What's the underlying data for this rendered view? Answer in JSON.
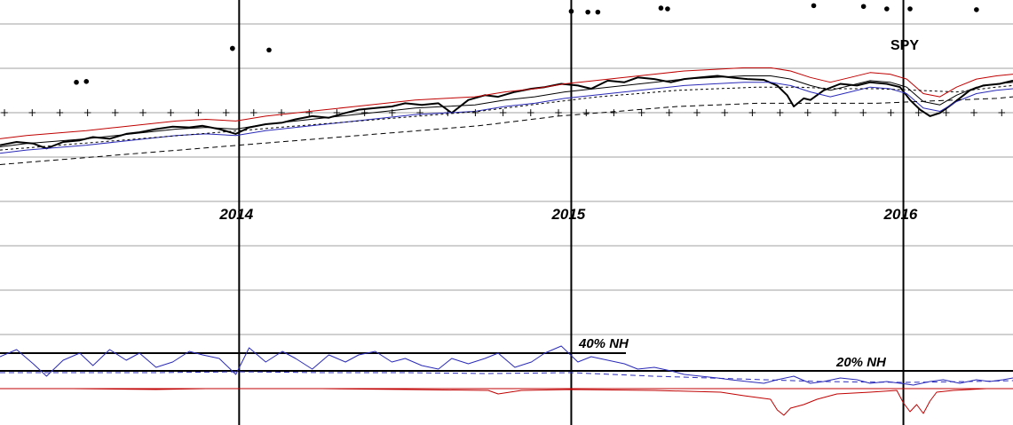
{
  "chart_data": {
    "type": "line",
    "panels": [
      {
        "name": "price",
        "ticker": "SPY",
        "x_domain": [
          2013.28,
          2016.33
        ],
        "years": [
          "2014",
          "2015",
          "2016"
        ],
        "year_positions": [
          2014.0,
          2015.0,
          2016.0
        ],
        "series": [
          {
            "role": "price",
            "color": "#000000",
            "style": "bold",
            "x": [
              2013.28,
              2013.33,
              2013.38,
              2013.42,
              2013.47,
              2013.52,
              2013.56,
              2013.61,
              2013.66,
              2013.7,
              2013.75,
              2013.8,
              2013.85,
              2013.89,
              2013.94,
              2013.99,
              2014.03,
              2014.08,
              2014.13,
              2014.17,
              2014.22,
              2014.27,
              2014.32,
              2014.36,
              2014.41,
              2014.46,
              2014.5,
              2014.55,
              2014.6,
              2014.64,
              2014.69,
              2014.74,
              2014.78,
              2014.83,
              2014.88,
              2014.92,
              2014.97,
              2015.02,
              2015.06,
              2015.11,
              2015.16,
              2015.2,
              2015.25,
              2015.3,
              2015.34,
              2015.39,
              2015.44,
              2015.48,
              2015.53,
              2015.58,
              2015.62,
              2015.65,
              2015.67,
              2015.7,
              2015.72,
              2015.76,
              2015.81,
              2015.86,
              2015.9,
              2015.95,
              2015.99,
              2016.02,
              2016.05,
              2016.08,
              2016.11,
              2016.15,
              2016.2,
              2016.24,
              2016.29,
              2016.33
            ],
            "values": [
              40,
              44,
              42,
              36,
              44,
              46,
              50,
              48,
              54,
              56,
              60,
              63,
              62,
              64,
              60,
              54,
              62,
              66,
              68,
              72,
              76,
              74,
              80,
              84,
              86,
              88,
              92,
              90,
              92,
              80,
              96,
              102,
              100,
              106,
              110,
              112,
              116,
              114,
              110,
              120,
              118,
              124,
              122,
              118,
              122,
              124,
              126,
              124,
              122,
              121,
              114,
              102,
              88,
              98,
              96,
              108,
              116,
              114,
              118,
              116,
              112,
              96,
              84,
              76,
              80,
              92,
              108,
              114,
              116,
              120
            ]
          },
          {
            "role": "upper-envelope",
            "color": "#c00000",
            "style": "thin",
            "x": [
              2013.28,
              2013.36,
              2013.45,
              2013.54,
              2013.63,
              2013.72,
              2013.81,
              2013.9,
              2013.99,
              2014.08,
              2014.17,
              2014.26,
              2014.35,
              2014.44,
              2014.53,
              2014.62,
              2014.71,
              2014.8,
              2014.89,
              2014.98,
              2015.07,
              2015.16,
              2015.25,
              2015.34,
              2015.43,
              2015.52,
              2015.6,
              2015.66,
              2015.72,
              2015.78,
              2015.84,
              2015.9,
              2015.96,
              2016.01,
              2016.06,
              2016.11,
              2016.16,
              2016.22,
              2016.28,
              2016.33
            ],
            "values": [
              48,
              52,
              55,
              58,
              62,
              66,
              70,
              72,
              70,
              76,
              80,
              84,
              88,
              92,
              96,
              98,
              100,
              106,
              110,
              116,
              120,
              124,
              128,
              132,
              134,
              136,
              136,
              132,
              124,
              118,
              124,
              130,
              128,
              122,
              104,
              100,
              112,
              122,
              126,
              128
            ]
          },
          {
            "role": "moving-average",
            "color": "#000000",
            "style": "thin",
            "x": [
              2013.28,
              2013.36,
              2013.45,
              2013.54,
              2013.63,
              2013.72,
              2013.81,
              2013.9,
              2013.99,
              2014.08,
              2014.17,
              2014.26,
              2014.35,
              2014.44,
              2014.53,
              2014.62,
              2014.71,
              2014.8,
              2014.89,
              2014.98,
              2015.07,
              2015.16,
              2015.25,
              2015.34,
              2015.43,
              2015.52,
              2015.6,
              2015.66,
              2015.72,
              2015.78,
              2015.84,
              2015.9,
              2015.96,
              2016.01,
              2016.06,
              2016.11,
              2016.16,
              2016.22,
              2016.28,
              2016.33
            ],
            "values": [
              38,
              42,
              45,
              48,
              52,
              56,
              60,
              62,
              60,
              66,
              70,
              74,
              78,
              82,
              86,
              88,
              90,
              96,
              100,
              106,
              110,
              114,
              118,
              122,
              124,
              126,
              126,
              122,
              114,
              108,
              114,
              120,
              118,
              112,
              94,
              90,
              102,
              112,
              116,
              118
            ]
          },
          {
            "role": "lower-envelope",
            "color": "#2a2ab8",
            "style": "thin",
            "x": [
              2013.28,
              2013.36,
              2013.45,
              2013.54,
              2013.63,
              2013.72,
              2013.81,
              2013.9,
              2013.99,
              2014.08,
              2014.17,
              2014.26,
              2014.35,
              2014.44,
              2014.53,
              2014.62,
              2014.71,
              2014.8,
              2014.89,
              2014.98,
              2015.07,
              2015.16,
              2015.25,
              2015.34,
              2015.43,
              2015.52,
              2015.6,
              2015.66,
              2015.72,
              2015.78,
              2015.84,
              2015.9,
              2015.96,
              2016.01,
              2016.06,
              2016.11,
              2016.16,
              2016.22,
              2016.28,
              2016.33
            ],
            "values": [
              30,
              34,
              37,
              40,
              44,
              48,
              52,
              54,
              52,
              58,
              62,
              66,
              70,
              74,
              78,
              80,
              82,
              88,
              92,
              98,
              102,
              106,
              110,
              114,
              116,
              118,
              118,
              114,
              106,
              100,
              106,
              112,
              110,
              104,
              86,
              82,
              94,
              104,
              108,
              110
            ]
          },
          {
            "role": "short-dashed",
            "color": "#000000",
            "style": "dotted",
            "x": [
              2013.28,
              2013.4,
              2013.52,
              2013.64,
              2013.76,
              2013.88,
              2014.0,
              2014.12,
              2014.24,
              2014.36,
              2014.48,
              2014.6,
              2014.72,
              2014.84,
              2014.96,
              2015.08,
              2015.2,
              2015.32,
              2015.44,
              2015.56,
              2015.68,
              2015.8,
              2015.92,
              2016.04,
              2016.16,
              2016.28,
              2016.33
            ],
            "values": [
              34,
              38,
              42,
              46,
              50,
              54,
              58,
              62,
              66,
              70,
              74,
              78,
              82,
              88,
              94,
              100,
              104,
              108,
              110,
              112,
              112,
              110,
              110,
              108,
              106,
              112,
              114
            ]
          },
          {
            "role": "long-dashed",
            "color": "#000000",
            "style": "dashed",
            "x": [
              2013.28,
              2013.4,
              2013.52,
              2013.64,
              2013.76,
              2013.88,
              2014.0,
              2014.12,
              2014.24,
              2014.36,
              2014.48,
              2014.6,
              2014.72,
              2014.84,
              2014.96,
              2015.08,
              2015.2,
              2015.32,
              2015.44,
              2015.56,
              2015.68,
              2015.8,
              2015.92,
              2016.04,
              2016.16,
              2016.28,
              2016.33
            ],
            "values": [
              16,
              20,
              24,
              28,
              32,
              36,
              40,
              44,
              48,
              52,
              56,
              60,
              64,
              70,
              76,
              80,
              84,
              88,
              90,
              92,
              92,
              92,
              92,
              94,
              96,
              98,
              100
            ]
          }
        ],
        "markers": {
          "style": "dots",
          "x": [
            2013.51,
            2013.54,
            2013.98,
            2013.98,
            2014.09,
            2015.0,
            2015.05,
            2015.08,
            2015.27,
            2015.29,
            2015.73,
            2015.88,
            2015.95,
            2016.02,
            2016.22,
            2016.35
          ],
          "values": [
            118,
            119,
            160,
            160,
            158,
            206,
            205,
            205,
            210,
            209,
            213,
            212,
            209,
            209,
            208,
            210
          ]
        }
      },
      {
        "name": "new-highs-breadth",
        "x_domain": [
          2013.28,
          2016.33
        ],
        "annotations": [
          "40% NH",
          "20% NH"
        ],
        "reference_levels": [
          40,
          20
        ],
        "series": [
          {
            "role": "new-highs-pct",
            "color": "#2a2ab8",
            "x": [
              2013.28,
              2013.33,
              2013.38,
              2013.42,
              2013.47,
              2013.52,
              2013.56,
              2013.61,
              2013.66,
              2013.7,
              2013.75,
              2013.8,
              2013.85,
              2013.89,
              2013.94,
              2013.99,
              2014.03,
              2014.08,
              2014.13,
              2014.17,
              2014.22,
              2014.27,
              2014.32,
              2014.36,
              2014.41,
              2014.46,
              2014.5,
              2014.55,
              2014.6,
              2014.64,
              2014.69,
              2014.74,
              2014.78,
              2014.83,
              2014.88,
              2014.92,
              2014.97,
              2015.02,
              2015.06,
              2015.11,
              2015.16,
              2015.2,
              2015.25,
              2015.3,
              2015.34,
              2015.39,
              2015.44,
              2015.48,
              2015.53,
              2015.58,
              2015.62,
              2015.67,
              2015.72,
              2015.76,
              2015.81,
              2015.86,
              2015.9,
              2015.95,
              2015.99,
              2016.03,
              2016.08,
              2016.12,
              2016.17,
              2016.22,
              2016.26,
              2016.3,
              2016.33
            ],
            "values": [
              36,
              44,
              28,
              14,
              32,
              40,
              26,
              44,
              32,
              40,
              24,
              30,
              42,
              38,
              34,
              16,
              46,
              30,
              42,
              34,
              22,
              38,
              30,
              38,
              42,
              30,
              34,
              26,
              22,
              34,
              28,
              34,
              40,
              24,
              30,
              40,
              48,
              30,
              36,
              32,
              28,
              22,
              24,
              20,
              16,
              14,
              12,
              10,
              8,
              6,
              10,
              14,
              6,
              8,
              12,
              10,
              6,
              8,
              6,
              4,
              8,
              10,
              6,
              10,
              8,
              10,
              12
            ]
          },
          {
            "role": "new-highs-avg",
            "color": "#2a2ab8",
            "style": "dashed",
            "x": [
              2013.28,
              2013.5,
              2013.75,
              2014.0,
              2014.25,
              2014.5,
              2014.75,
              2015.0,
              2015.25,
              2015.5,
              2015.75,
              2016.0,
              2016.2,
              2016.33
            ],
            "values": [
              18,
              18,
              18,
              19,
              18,
              18,
              17,
              18,
              14,
              11,
              8,
              7,
              8,
              9
            ]
          },
          {
            "role": "new-lows-pct",
            "color": "#c00000",
            "x": [
              2013.28,
              2013.5,
              2013.75,
              2013.9,
              2014.0,
              2014.25,
              2014.5,
              2014.75,
              2014.78,
              2014.85,
              2015.0,
              2015.25,
              2015.45,
              2015.52,
              2015.6,
              2015.62,
              2015.64,
              2015.66,
              2015.7,
              2015.74,
              2015.8,
              2015.9,
              2015.98,
              2016.0,
              2016.02,
              2016.04,
              2016.06,
              2016.08,
              2016.1,
              2016.15,
              2016.25,
              2016.33
            ],
            "values": [
              0,
              0,
              -1,
              0,
              0,
              0,
              -1,
              -2,
              -6,
              -2,
              -1,
              -2,
              -4,
              -8,
              -12,
              -24,
              -30,
              -22,
              -18,
              -12,
              -6,
              -4,
              -2,
              -16,
              -26,
              -18,
              -28,
              -14,
              -4,
              -2,
              0,
              0
            ]
          }
        ]
      }
    ]
  }
}
